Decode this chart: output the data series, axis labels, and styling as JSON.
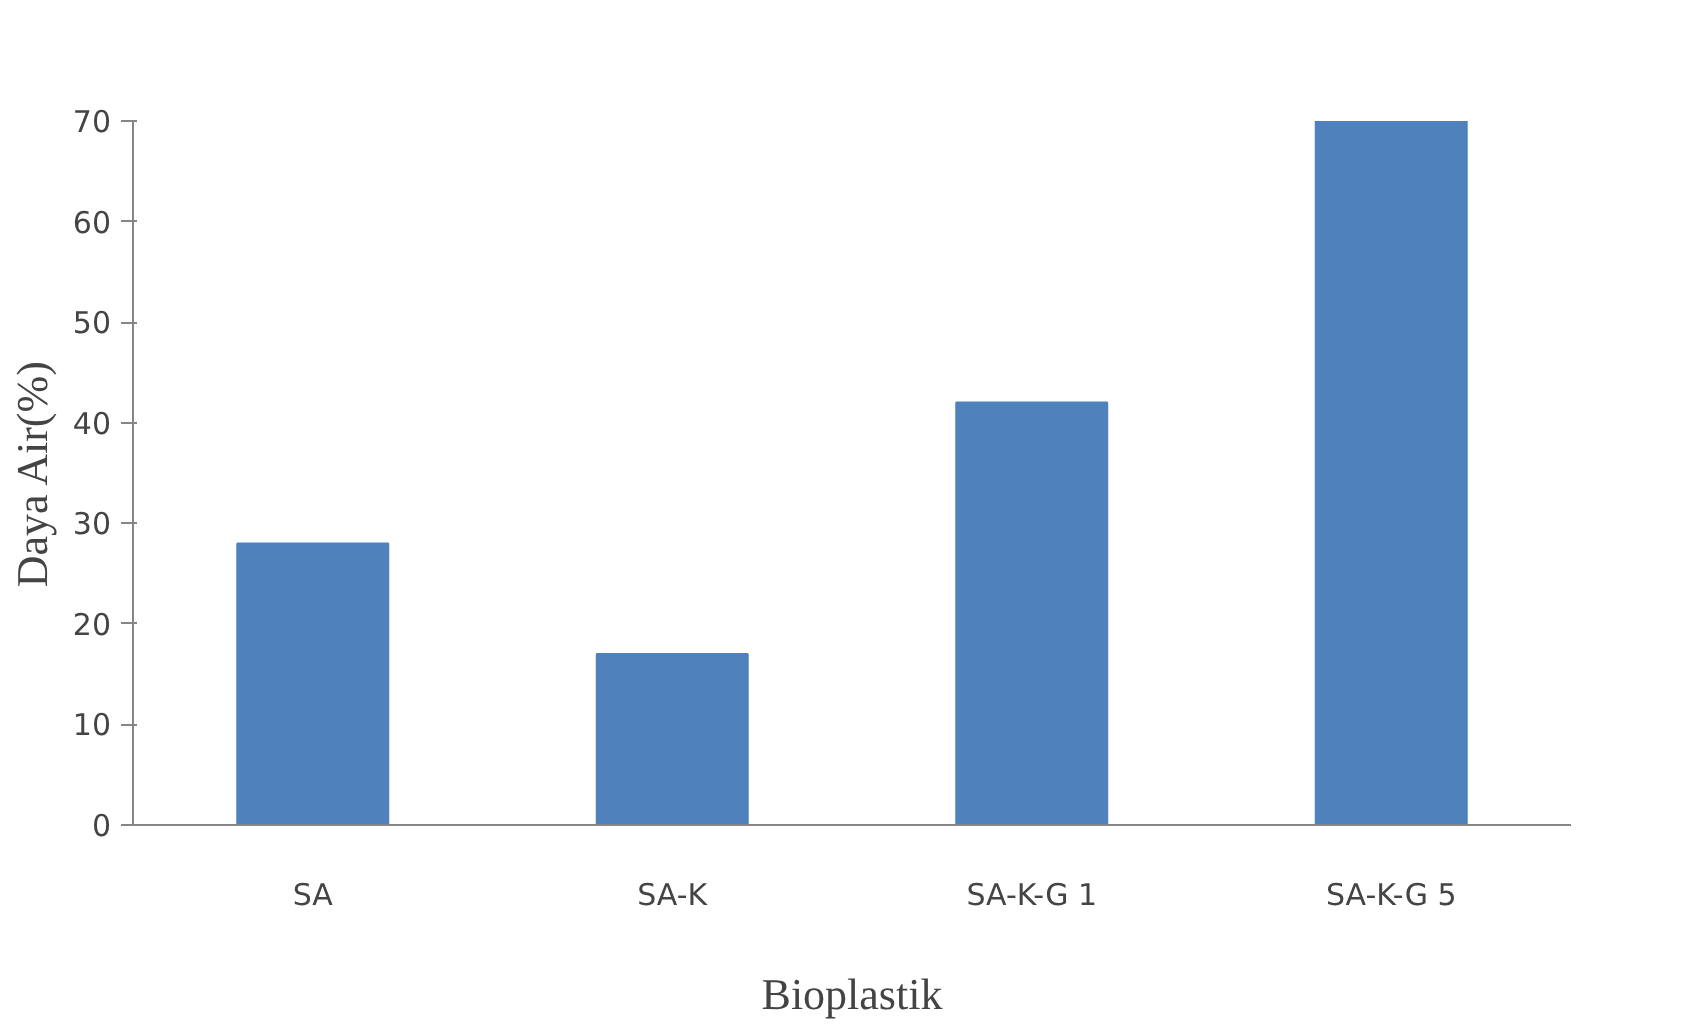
{
  "chart_data": {
    "type": "bar",
    "xlabel": "Bioplastik",
    "ylabel": "Daya Air(%)",
    "categories": [
      "SA",
      "SA-K",
      "SA-K-G 1",
      "SA-K-G 5"
    ],
    "values": [
      28,
      17,
      42,
      70
    ],
    "color": "#4f81bd",
    "ylim": [
      0,
      70
    ],
    "yticks": [
      0,
      10,
      20,
      30,
      40,
      50,
      60,
      70
    ],
    "grid": false
  }
}
